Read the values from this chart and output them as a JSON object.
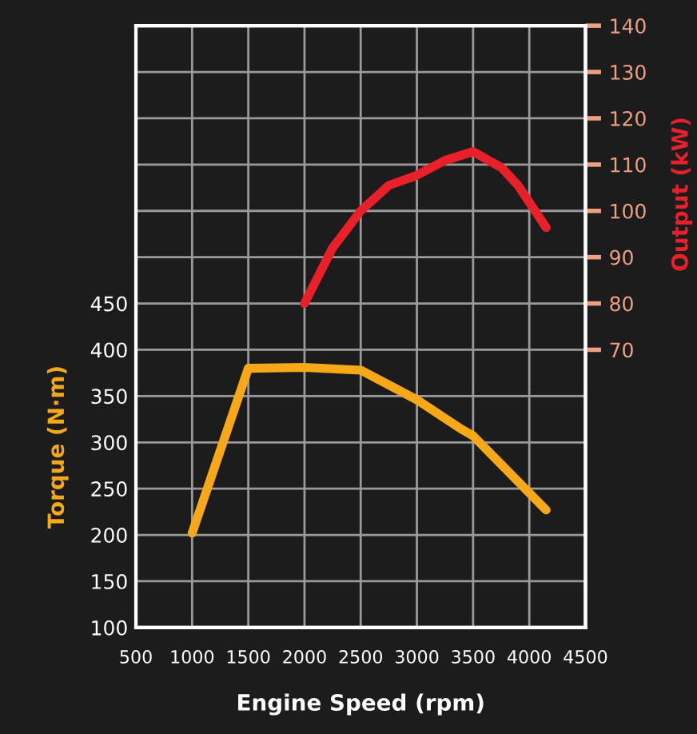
{
  "chart_data": {
    "type": "line",
    "xlabel": "Engine Speed (rpm)",
    "ylabel": "Torque (N·m)",
    "y2label": "Output (kW)",
    "xlim": [
      500,
      4500
    ],
    "xticks": [
      500,
      1000,
      1500,
      2000,
      2500,
      3000,
      3500,
      4000,
      4500
    ],
    "ylim": [
      100,
      750
    ],
    "yticks": [
      100,
      150,
      200,
      250,
      300,
      350,
      400,
      450,
      {
        "value": 500,
        "label": null
      },
      {
        "value": 550,
        "label": null
      },
      {
        "value": 600,
        "label": null
      },
      {
        "value": 650,
        "label": null
      },
      {
        "value": 700,
        "label": null
      },
      {
        "value": 750,
        "label": null
      }
    ],
    "y2lim": [
      10,
      140
    ],
    "y2ticks": [
      70,
      80,
      90,
      100,
      110,
      120,
      130,
      140
    ],
    "grid": true,
    "marker": "none",
    "line_style": "solid",
    "series": [
      {
        "color": "#f7a818",
        "x": [
          1000,
          1500,
          2000,
          2500,
          3000,
          3400,
          3500,
          4150
        ],
        "values": [
          202,
          380,
          381,
          378,
          346,
          314,
          307,
          227
        ]
      },
      {
        "color": "#e8202a",
        "axis": "y2",
        "x": [
          2000,
          2250,
          2500,
          2750,
          3000,
          3250,
          3500,
          3750,
          3900,
          4150
        ],
        "values": [
          80,
          92,
          100,
          105.5,
          107.7,
          110.9,
          112.8,
          109.4,
          105.5,
          96.4
        ]
      }
    ]
  }
}
